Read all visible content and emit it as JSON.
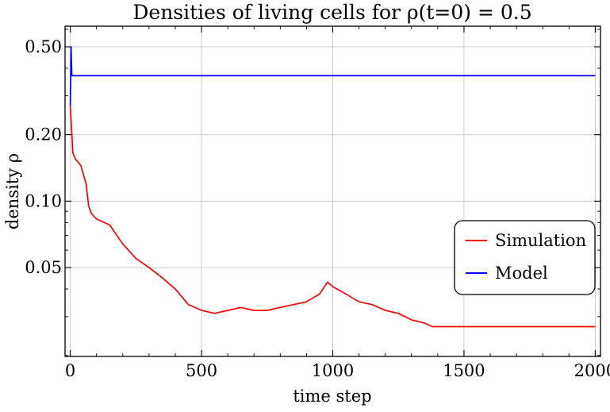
{
  "chart_data": {
    "type": "line",
    "title": "Densities of living cells for ρ(t=0) = 0.5",
    "xlabel": "time step",
    "ylabel": "density ρ",
    "xlim": [
      -20,
      2020
    ],
    "ylim": [
      0.0198,
      0.62
    ],
    "yscale": "log",
    "grid": true,
    "legend_position": "right",
    "xticks": [
      {
        "value": 0,
        "label": "0"
      },
      {
        "value": 500,
        "label": "500"
      },
      {
        "value": 1000,
        "label": "1000"
      },
      {
        "value": 1500,
        "label": "1500"
      },
      {
        "value": 2000,
        "label": "2000"
      }
    ],
    "yticks": [
      {
        "value": 0.05,
        "label": "0.05"
      },
      {
        "value": 0.1,
        "label": "0.10"
      },
      {
        "value": 0.2,
        "label": "0.20"
      },
      {
        "value": 0.5,
        "label": "0.50"
      }
    ],
    "series": [
      {
        "name": "Simulation",
        "color": "#ff0000",
        "x": [
          0,
          10,
          20,
          40,
          60,
          70,
          80,
          100,
          150,
          200,
          250,
          300,
          350,
          400,
          450,
          500,
          550,
          600,
          650,
          700,
          750,
          800,
          850,
          900,
          950,
          980,
          1000,
          1050,
          1100,
          1150,
          1200,
          1250,
          1300,
          1350,
          1380,
          1400,
          1500,
          1600,
          1700,
          1800,
          1900,
          2000
        ],
        "y": [
          0.27,
          0.165,
          0.155,
          0.145,
          0.12,
          0.095,
          0.088,
          0.083,
          0.078,
          0.064,
          0.055,
          0.05,
          0.045,
          0.04,
          0.034,
          0.032,
          0.031,
          0.032,
          0.033,
          0.032,
          0.032,
          0.033,
          0.034,
          0.035,
          0.038,
          0.043,
          0.041,
          0.038,
          0.035,
          0.034,
          0.032,
          0.031,
          0.029,
          0.028,
          0.027,
          0.027,
          0.027,
          0.027,
          0.027,
          0.027,
          0.027,
          0.027
        ]
      },
      {
        "name": "Model",
        "color": "#0000ff",
        "x": [
          0,
          3,
          6,
          10,
          2000
        ],
        "y": [
          0.27,
          0.5,
          0.37,
          0.37,
          0.37
        ]
      }
    ]
  }
}
